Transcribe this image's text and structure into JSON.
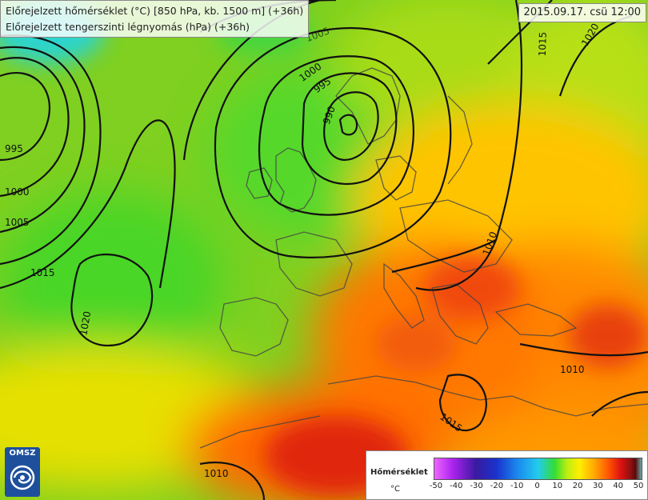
{
  "header": {
    "line1": "Előrejelzett hőmérséklet (°C) [850 hPa, kb. 1500 m] (+36h)",
    "line2": "Előrejelzett tengerszinti légnyomás (hPa) (+36h)",
    "date": "2015.09.17. csü 12:00"
  },
  "logo": {
    "label": "OMSZ",
    "icon": "omsz-logo-icon"
  },
  "legend": {
    "title": "Hőmérséklet",
    "unit": "°C",
    "ticks": [
      "-50",
      "-40",
      "-30",
      "-20",
      "-10",
      "0",
      "10",
      "20",
      "30",
      "40",
      "50"
    ]
  },
  "isobars": [
    "995",
    "1000",
    "1005",
    "1015",
    "1020",
    "1000",
    "995",
    "990",
    "1005",
    "1015",
    "1020",
    "1010",
    "1010",
    "1015",
    "1010"
  ],
  "colors": {
    "cold": "#22ccee",
    "mild": "#7fd020",
    "warm": "#ffaa00",
    "hot": "#dd2a10"
  }
}
